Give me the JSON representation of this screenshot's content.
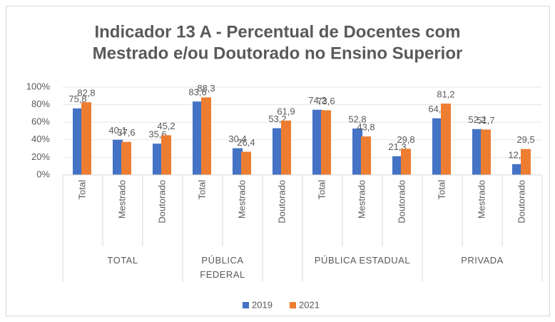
{
  "chart_data": {
    "type": "bar",
    "title": [
      "Indicador 13 A - Percentual de Docentes com",
      "Mestrado e/ou Doutorado no Ensino Superior"
    ],
    "groups": [
      {
        "label": "TOTAL",
        "categories": [
          "Total",
          "Mestrado",
          "Doutorado"
        ]
      },
      {
        "label": "PÚBLICA FEDERAL",
        "categories": [
          "Total",
          "Mestrado"
        ]
      },
      {
        "label": null,
        "categories": [
          "Doutorado"
        ]
      },
      {
        "label": "PÚBLICA ESTADUAL",
        "categories": [
          "Total",
          "Mestrado",
          "Doutorado"
        ]
      },
      {
        "label": "PRIVADA",
        "categories": [
          "Total",
          "Mestrado",
          "Doutorado"
        ]
      }
    ],
    "series": [
      {
        "name": "2019",
        "color": "#4472c4",
        "values": [
          75.8,
          40.1,
          35.6,
          83.6,
          30.4,
          53.2,
          74.2,
          52.8,
          21.3,
          64.5,
          52.2,
          12.3
        ],
        "value_labels": [
          "75,8",
          "40,1",
          "35,6",
          "83,6",
          "30,4",
          "53,2",
          "74,2",
          "52,8",
          "21,3",
          "64,5",
          "52,2",
          "12,3"
        ]
      },
      {
        "name": "2021",
        "color": "#ed7d31",
        "values": [
          82.8,
          37.6,
          45.2,
          88.3,
          26.4,
          61.9,
          73.6,
          43.8,
          29.8,
          81.2,
          51.7,
          29.5
        ],
        "value_labels": [
          "82,8",
          "37,6",
          "45,2",
          "88,3",
          "26,4",
          "61,9",
          "73,6",
          "43,8",
          "29,8",
          "81,2",
          "51,7",
          "29,5"
        ]
      }
    ],
    "ylim": [
      0,
      100
    ],
    "yticks": [
      {
        "value": 0,
        "label": "0%"
      },
      {
        "value": 20,
        "label": "20%"
      },
      {
        "value": 40,
        "label": "40%"
      },
      {
        "value": 60,
        "label": "60%"
      },
      {
        "value": 80,
        "label": "80%"
      },
      {
        "value": 100,
        "label": "100%"
      }
    ],
    "legend": "bottom"
  }
}
